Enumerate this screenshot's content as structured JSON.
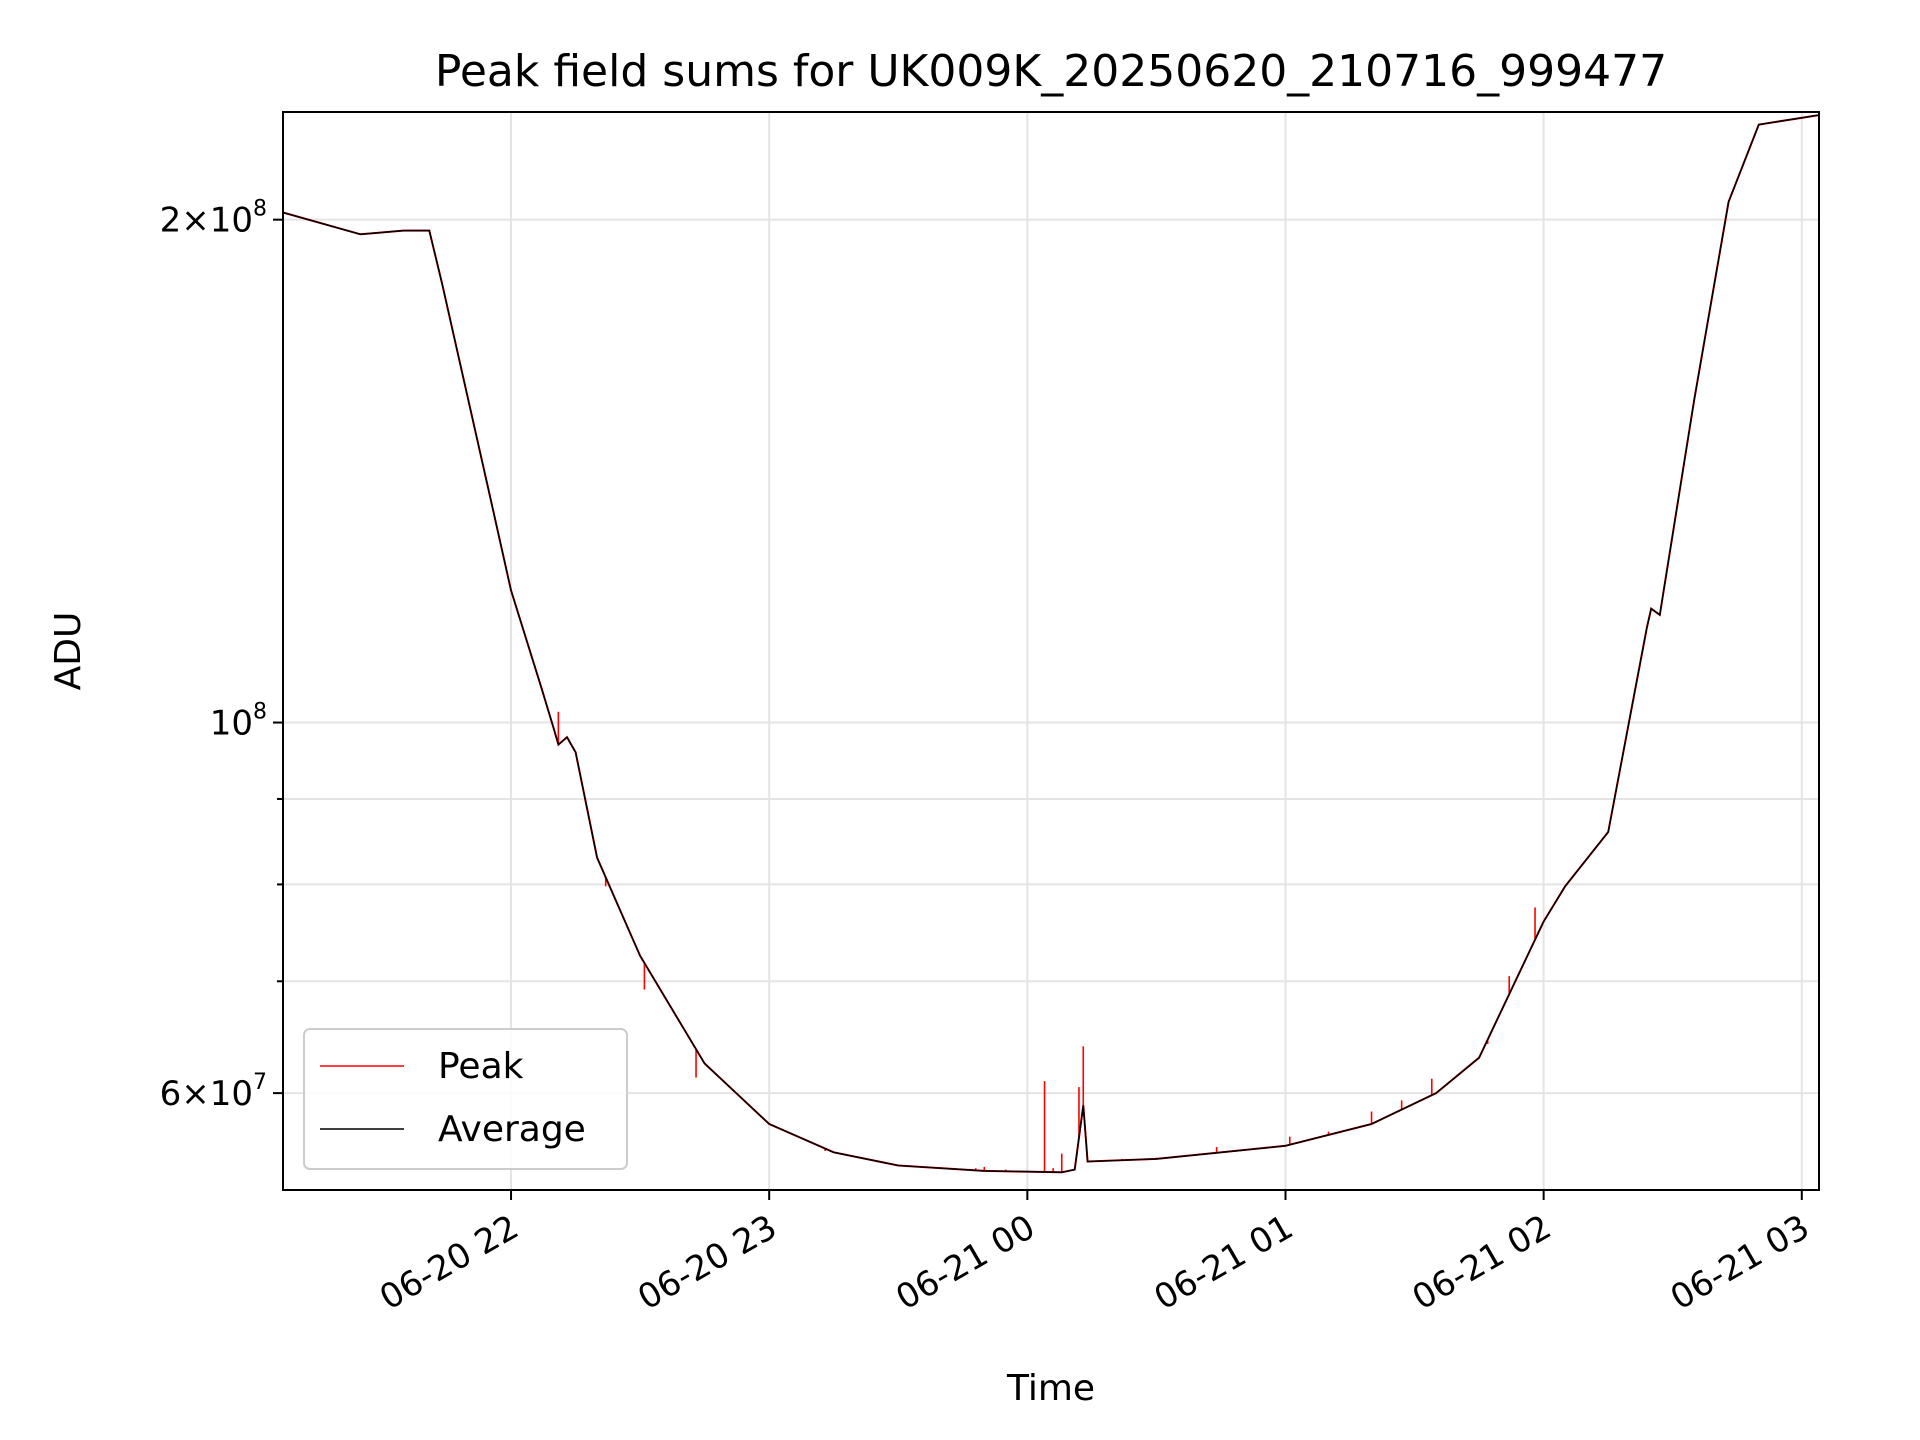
{
  "chart_data": {
    "type": "line",
    "title": "Peak field sums for UK009K_20250620_210716_999477",
    "xlabel": "Time",
    "ylabel": "ADU",
    "yscale": "log",
    "grid": true,
    "legend_placement": "lower-left",
    "xlim": [
      "2025-06-20 21:07",
      "2025-06-21 03:04"
    ],
    "ylim": [
      52500000,
      232000000
    ],
    "x_ticks": [
      {
        "t": "2025-06-20 22:00",
        "label": "06-20 22"
      },
      {
        "t": "2025-06-20 23:00",
        "label": "06-20 23"
      },
      {
        "t": "2025-06-21 00:00",
        "label": "06-21 00"
      },
      {
        "t": "2025-06-21 01:00",
        "label": "06-21 01"
      },
      {
        "t": "2025-06-21 02:00",
        "label": "06-21 02"
      },
      {
        "t": "2025-06-21 03:00",
        "label": "06-21 03"
      }
    ],
    "y_major_ticks": [
      {
        "value": 60000000,
        "mant": "6",
        "exp": "7"
      },
      {
        "value": 100000000,
        "mant": "",
        "exp": "8"
      },
      {
        "value": 200000000,
        "mant": "2",
        "exp": "8"
      }
    ],
    "y_minor_ticks": [
      70000000,
      80000000,
      90000000
    ],
    "series": [
      {
        "name": "Peak",
        "color": "#ff0000",
        "spikes": [
          {
            "t": "2025-06-20 22:11",
            "y": 101500000
          },
          {
            "t": "2025-06-20 22:22",
            "y": 79800000
          },
          {
            "t": "2025-06-20 22:31",
            "y": 69200000
          },
          {
            "t": "2025-06-20 22:43",
            "y": 61300000
          },
          {
            "t": "2025-06-20 23:13",
            "y": 55400000
          },
          {
            "t": "2025-06-20 23:48",
            "y": 54100000
          },
          {
            "t": "2025-06-20 23:50",
            "y": 54200000
          },
          {
            "t": "2025-06-20 23:55",
            "y": 54000000
          },
          {
            "t": "2025-06-21 00:04",
            "y": 61000000
          },
          {
            "t": "2025-06-21 00:06",
            "y": 54100000
          },
          {
            "t": "2025-06-21 00:08",
            "y": 55200000
          },
          {
            "t": "2025-06-21 00:12",
            "y": 60500000
          },
          {
            "t": "2025-06-21 00:13",
            "y": 64000000
          },
          {
            "t": "2025-06-21 00:22",
            "y": 54800000
          },
          {
            "t": "2025-06-21 00:30",
            "y": 54900000
          },
          {
            "t": "2025-06-21 00:40",
            "y": 55200000
          },
          {
            "t": "2025-06-21 00:44",
            "y": 55700000
          },
          {
            "t": "2025-06-21 00:50",
            "y": 55400000
          },
          {
            "t": "2025-06-21 01:01",
            "y": 56500000
          },
          {
            "t": "2025-06-21 01:10",
            "y": 56900000
          },
          {
            "t": "2025-06-21 01:20",
            "y": 58500000
          },
          {
            "t": "2025-06-21 01:27",
            "y": 59400000
          },
          {
            "t": "2025-06-21 01:34",
            "y": 61200000
          },
          {
            "t": "2025-06-21 01:47",
            "y": 64200000
          },
          {
            "t": "2025-06-21 01:52",
            "y": 70500000
          },
          {
            "t": "2025-06-21 01:58",
            "y": 77500000
          }
        ]
      },
      {
        "name": "Average",
        "color": "#000000",
        "x": [
          "2025-06-20 21:07",
          "2025-06-20 21:25",
          "2025-06-20 21:35",
          "2025-06-20 21:41",
          "2025-06-20 21:44",
          "2025-06-20 21:55",
          "2025-06-20 22:00",
          "2025-06-20 22:07",
          "2025-06-20 22:10",
          "2025-06-20 22:11",
          "2025-06-20 22:13",
          "2025-06-20 22:15",
          "2025-06-20 22:20",
          "2025-06-20 22:30",
          "2025-06-20 22:45",
          "2025-06-20 23:00",
          "2025-06-20 23:15",
          "2025-06-20 23:30",
          "2025-06-20 23:50",
          "2025-06-21 00:08",
          "2025-06-21 00:11",
          "2025-06-21 00:13",
          "2025-06-21 00:14",
          "2025-06-21 00:30",
          "2025-06-21 01:00",
          "2025-06-21 01:20",
          "2025-06-21 01:35",
          "2025-06-21 01:45",
          "2025-06-21 02:00",
          "2025-06-21 02:05",
          "2025-06-21 02:15",
          "2025-06-21 02:24",
          "2025-06-21 02:25",
          "2025-06-21 02:27",
          "2025-06-21 02:35",
          "2025-06-21 02:43",
          "2025-06-21 02:50",
          "2025-06-21 03:04"
        ],
        "values": [
          202000000,
          196000000,
          197000000,
          197000000,
          183000000,
          137000000,
          120000000,
          105000000,
          99000000,
          97000000,
          98000000,
          96000000,
          83000000,
          72500000,
          62500000,
          57500000,
          55300000,
          54300000,
          53900000,
          53800000,
          54000000,
          59000000,
          54600000,
          54800000,
          55800000,
          57500000,
          60000000,
          63000000,
          76000000,
          79800000,
          86000000,
          114000000,
          117000000,
          116000000,
          156000000,
          205000000,
          228000000,
          231000000
        ]
      }
    ]
  }
}
